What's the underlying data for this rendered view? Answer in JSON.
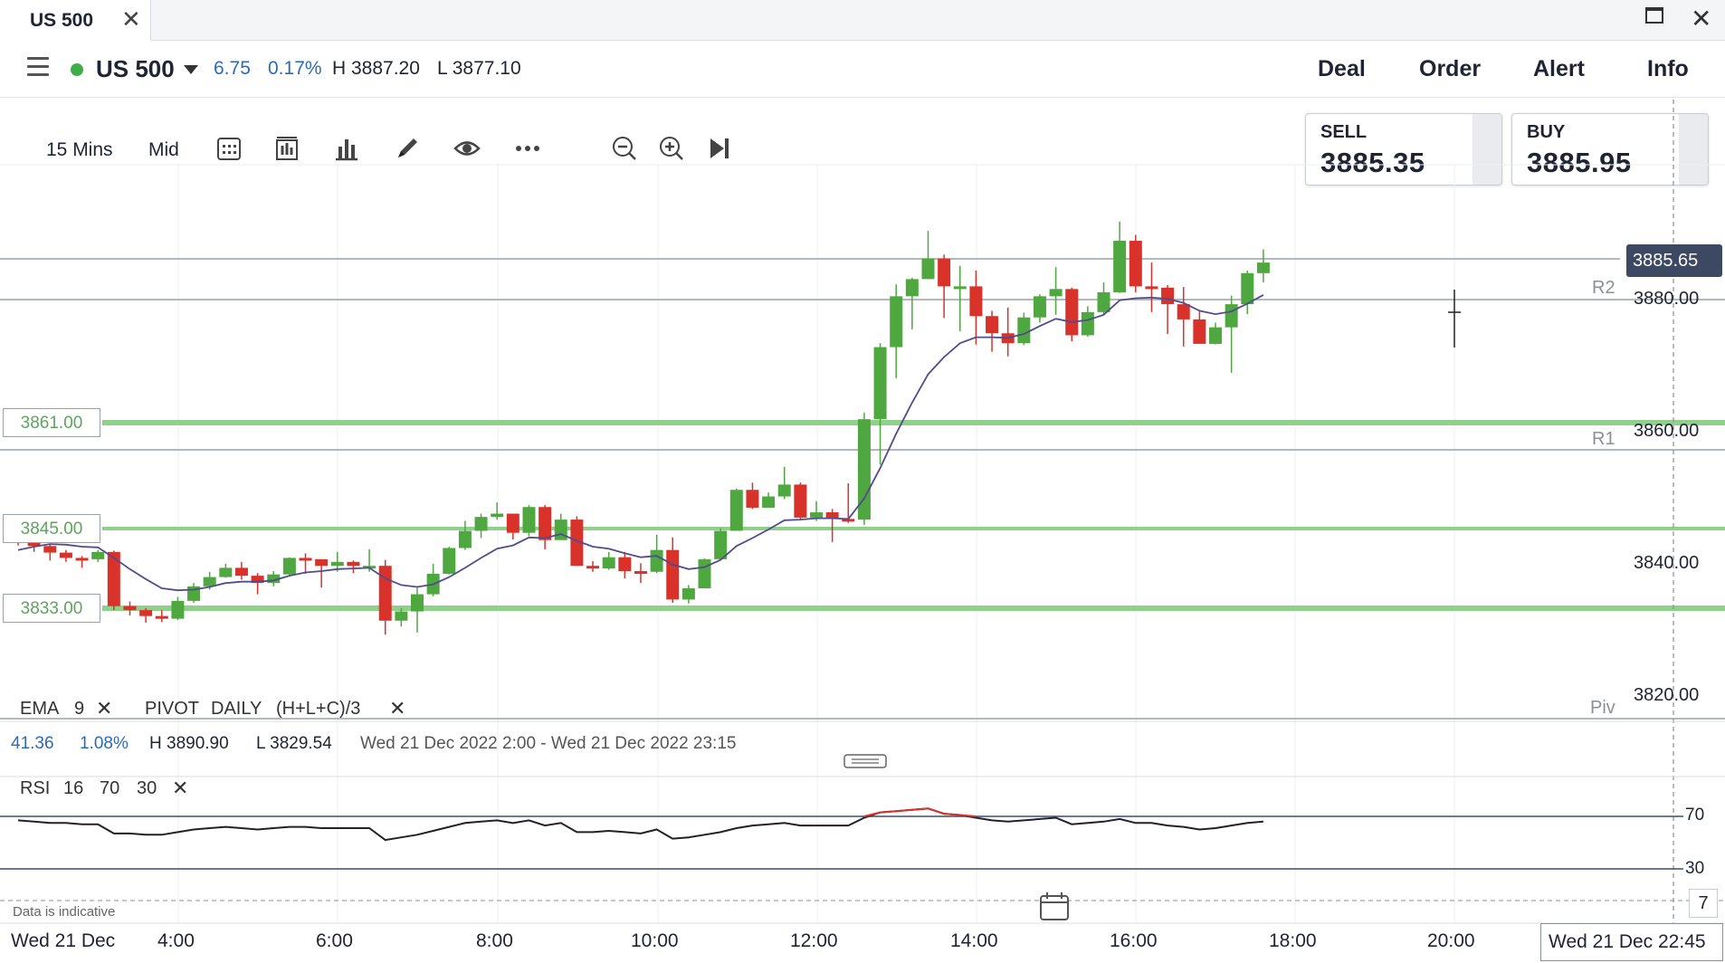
{
  "window": {
    "tab_title": "US 500"
  },
  "header": {
    "instrument": "US 500",
    "change": "6.75",
    "change_pct": "0.17%",
    "high": "H 3887.20",
    "low": "L 3877.10",
    "nav": [
      "Deal",
      "Order",
      "Alert",
      "Info"
    ]
  },
  "toolbar": {
    "timeframe": "15 Mins",
    "price_type": "Mid",
    "icons": [
      "calendar-icon",
      "chart-type-icon",
      "bar-chart-icon",
      "pencil-icon",
      "eye-icon",
      "more-icon",
      "zoom-out-icon",
      "zoom-in-icon",
      "skip-to-end-icon"
    ]
  },
  "quote": {
    "sell_label": "SELL",
    "sell_price": "3885.35",
    "buy_label": "BUY",
    "buy_price": "3885.95"
  },
  "chart": {
    "current_price_tag": "3885.65",
    "y_ticks": [
      "3880.00",
      "3860.00",
      "3840.00",
      "3820.00"
    ],
    "pivot_labels": [
      "R2",
      "R1",
      "Piv"
    ],
    "level_labels": [
      "3861.00",
      "3845.00",
      "3833.00"
    ],
    "x_ticks": [
      "Wed 21 Dec",
      "4:00",
      "6:00",
      "8:00",
      "10:00",
      "12:00",
      "14:00",
      "16:00",
      "18:00",
      "20:00"
    ],
    "crosshair_time": "Wed 21 Dec 22:45",
    "indicators": {
      "ema": "EMA",
      "ema_period": "9",
      "pivot": "PIVOT",
      "pivot_period": "DAILY",
      "pivot_formula": "(H+L+C)/3"
    },
    "range_info": {
      "change": "41.36",
      "change_pct": "1.08%",
      "high": "H 3890.90",
      "low": "L 3829.54",
      "period": "Wed 21 Dec 2022 2:00 - Wed 21 Dec 2022 23:15"
    },
    "rsi": {
      "name": "RSI",
      "period": "16",
      "upper": "70",
      "lower": "30",
      "upper_label": "70",
      "lower_label": "30"
    },
    "indicative_note": "Data is indicative",
    "calendar_day": "7",
    "colors": {
      "up": "#4fa83f",
      "down": "#d9322b",
      "level": "#8fd08a",
      "ema": "#524b8f",
      "rsi": "#222222",
      "rsi_over": "#d9322b"
    }
  },
  "chart_data": {
    "type": "candlestick",
    "y_axis_ticks": [
      3880,
      3860,
      3840,
      3820
    ],
    "levels": {
      "R2": 3879.8,
      "R1": 3857.2,
      "Piv": 3816.5,
      "3861.00": 3861,
      "3845.00": 3845,
      "3833.00": 3833,
      "current": 3885.65
    },
    "x_axis_ticks": [
      "4:00",
      "6:00",
      "8:00",
      "10:00",
      "12:00",
      "14:00",
      "16:00",
      "18:00",
      "20:00"
    ],
    "candles": [
      [
        3843.9,
        3843.7,
        3844.8,
        3842.8
      ],
      [
        3843.7,
        3842.7,
        3844.2,
        3841.8
      ],
      [
        3842.7,
        3841.7,
        3843.0,
        3840.5
      ],
      [
        3841.7,
        3840.9,
        3842.1,
        3840.3
      ],
      [
        3840.9,
        3840.7,
        3841.2,
        3839.4
      ],
      [
        3840.7,
        3841.8,
        3842.1,
        3840.3
      ],
      [
        3841.8,
        3833.6,
        3842.0,
        3833.0
      ],
      [
        3833.6,
        3833.0,
        3834.3,
        3832.2
      ],
      [
        3833.0,
        3832.1,
        3833.3,
        3831.1
      ],
      [
        3832.1,
        3831.7,
        3833.0,
        3831.2
      ],
      [
        3831.7,
        3834.4,
        3835.0,
        3831.5
      ],
      [
        3834.4,
        3836.6,
        3837.1,
        3834.1
      ],
      [
        3836.6,
        3838.0,
        3838.8,
        3836.1
      ],
      [
        3838.0,
        3839.4,
        3840.0,
        3837.9
      ],
      [
        3839.4,
        3838.2,
        3840.3,
        3837.6
      ],
      [
        3838.2,
        3837.1,
        3838.6,
        3835.4
      ],
      [
        3837.1,
        3838.4,
        3838.9,
        3836.6
      ],
      [
        3838.4,
        3840.9,
        3841.0,
        3838.1
      ],
      [
        3840.9,
        3840.7,
        3841.6,
        3838.5
      ],
      [
        3840.7,
        3839.7,
        3840.7,
        3836.4
      ],
      [
        3839.7,
        3840.3,
        3841.8,
        3838.8
      ],
      [
        3840.3,
        3839.7,
        3840.5,
        3838.6
      ],
      [
        3839.7,
        3839.7,
        3842.2,
        3838.8
      ],
      [
        3839.7,
        3831.4,
        3840.6,
        3829.3
      ],
      [
        3831.4,
        3832.8,
        3833.3,
        3830.5
      ],
      [
        3832.8,
        3835.4,
        3836.4,
        3829.6
      ],
      [
        3835.4,
        3838.5,
        3840.0,
        3835.1
      ],
      [
        3838.5,
        3842.4,
        3842.6,
        3838.4
      ],
      [
        3842.4,
        3845.0,
        3846.5,
        3842.1
      ],
      [
        3845.0,
        3847.1,
        3847.6,
        3843.9
      ],
      [
        3847.1,
        3847.6,
        3849.3,
        3846.7
      ],
      [
        3847.6,
        3844.7,
        3847.6,
        3843.7
      ],
      [
        3844.7,
        3848.6,
        3848.9,
        3844.2
      ],
      [
        3848.6,
        3843.6,
        3848.9,
        3842.2
      ],
      [
        3843.6,
        3846.7,
        3847.6,
        3843.7
      ],
      [
        3846.7,
        3839.7,
        3847.2,
        3839.7
      ],
      [
        3839.7,
        3839.3,
        3840.4,
        3838.8
      ],
      [
        3839.3,
        3841.0,
        3841.8,
        3839.1
      ],
      [
        3841.0,
        3838.9,
        3841.8,
        3837.8
      ],
      [
        3838.9,
        3838.8,
        3840.1,
        3837.1
      ],
      [
        3838.8,
        3842.1,
        3844.4,
        3838.6
      ],
      [
        3842.1,
        3834.6,
        3844.0,
        3834.1
      ],
      [
        3834.6,
        3836.3,
        3836.8,
        3834.0
      ],
      [
        3836.3,
        3840.7,
        3840.8,
        3836.3
      ],
      [
        3840.7,
        3845.0,
        3845.4,
        3840.5
      ],
      [
        3845.0,
        3851.2,
        3851.4,
        3845.0
      ],
      [
        3851.2,
        3848.5,
        3852.3,
        3848.3
      ],
      [
        3848.5,
        3850.2,
        3850.8,
        3848.5
      ],
      [
        3850.2,
        3852.0,
        3854.7,
        3849.8
      ],
      [
        3852.0,
        3847.0,
        3852.3,
        3846.8
      ],
      [
        3847.0,
        3847.8,
        3849.5,
        3846.5
      ],
      [
        3847.8,
        3846.8,
        3848.3,
        3843.3
      ],
      [
        3846.8,
        3846.7,
        3852.2,
        3846.2
      ],
      [
        3846.7,
        3861.9,
        3862.9,
        3845.9
      ],
      [
        3861.9,
        3872.8,
        3873.4,
        3855.0
      ],
      [
        3872.8,
        3880.5,
        3882.3,
        3868.1
      ],
      [
        3880.5,
        3883.1,
        3883.3,
        3875.5
      ],
      [
        3883.1,
        3886.2,
        3890.4,
        3883.1
      ],
      [
        3886.2,
        3882.0,
        3886.8,
        3877.2
      ],
      [
        3882.0,
        3882.0,
        3885.1,
        3875.2
      ],
      [
        3882.0,
        3877.5,
        3884.4,
        3873.2
      ],
      [
        3877.5,
        3874.9,
        3878.3,
        3872.1
      ],
      [
        3874.9,
        3873.4,
        3878.8,
        3871.4
      ],
      [
        3873.4,
        3877.3,
        3878.0,
        3873.1
      ],
      [
        3877.3,
        3880.5,
        3880.8,
        3876.5
      ],
      [
        3880.5,
        3881.6,
        3884.9,
        3877.7
      ],
      [
        3881.6,
        3874.6,
        3881.8,
        3873.7
      ],
      [
        3874.6,
        3878.1,
        3879.0,
        3874.4
      ],
      [
        3878.1,
        3881.1,
        3882.6,
        3877.8
      ],
      [
        3881.1,
        3888.9,
        3891.8,
        3881.0
      ],
      [
        3888.9,
        3882.0,
        3889.8,
        3881.1
      ],
      [
        3882.0,
        3881.8,
        3885.6,
        3878.1
      ],
      [
        3881.8,
        3879.3,
        3882.2,
        3874.8
      ],
      [
        3879.3,
        3877.0,
        3881.9,
        3872.9
      ],
      [
        3877.0,
        3873.3,
        3878.2,
        3873.3
      ],
      [
        3873.3,
        3875.8,
        3876.5,
        3873.2
      ],
      [
        3875.8,
        3879.3,
        3880.6,
        3868.9
      ],
      [
        3879.3,
        3884.0,
        3884.4,
        3877.8
      ],
      [
        3884.0,
        3885.6,
        3887.6,
        3882.6
      ]
    ],
    "ema": [
      3842.1,
      3842.6,
      3843.0,
      3842.9,
      3842.6,
      3842.5,
      3840.9,
      3839.2,
      3837.7,
      3836.3,
      3836.0,
      3836.1,
      3836.5,
      3837.1,
      3837.3,
      3837.3,
      3837.5,
      3838.2,
      3838.7,
      3838.9,
      3839.2,
      3839.3,
      3839.4,
      3837.8,
      3836.8,
      3836.5,
      3836.9,
      3838.0,
      3839.4,
      3840.9,
      3842.3,
      3842.8,
      3844.0,
      3843.9,
      3844.5,
      3843.5,
      3842.6,
      3842.3,
      3841.6,
      3841.0,
      3841.2,
      3839.9,
      3839.2,
      3839.5,
      3840.6,
      3842.7,
      3843.9,
      3845.2,
      3846.6,
      3846.7,
      3846.9,
      3846.9,
      3846.8,
      3849.9,
      3854.5,
      3859.7,
      3864.4,
      3868.7,
      3871.3,
      3873.4,
      3874.3,
      3874.3,
      3874.2,
      3874.8,
      3876.0,
      3877.1,
      3876.6,
      3876.9,
      3877.7,
      3879.9,
      3880.2,
      3880.3,
      3880.1,
      3879.5,
      3878.3,
      3877.8,
      3878.2,
      3879.4,
      3880.7
    ],
    "rsi": [
      67,
      66,
      65,
      65,
      64,
      64,
      57,
      57,
      56,
      56,
      58,
      60,
      61,
      62,
      61,
      60,
      61,
      62,
      62,
      61,
      61,
      61,
      61,
      52,
      54,
      56,
      59,
      62,
      65,
      66,
      67,
      65,
      67,
      63,
      65,
      58,
      58,
      59,
      58,
      57,
      60,
      53,
      54,
      56,
      58,
      61,
      63,
      64,
      65,
      63,
      63,
      63,
      63,
      69,
      73,
      74,
      75,
      76,
      72,
      71,
      69,
      67,
      66,
      67,
      68,
      69,
      64,
      65,
      66,
      68,
      65,
      65,
      63,
      62,
      60,
      61,
      63,
      65,
      66
    ]
  }
}
